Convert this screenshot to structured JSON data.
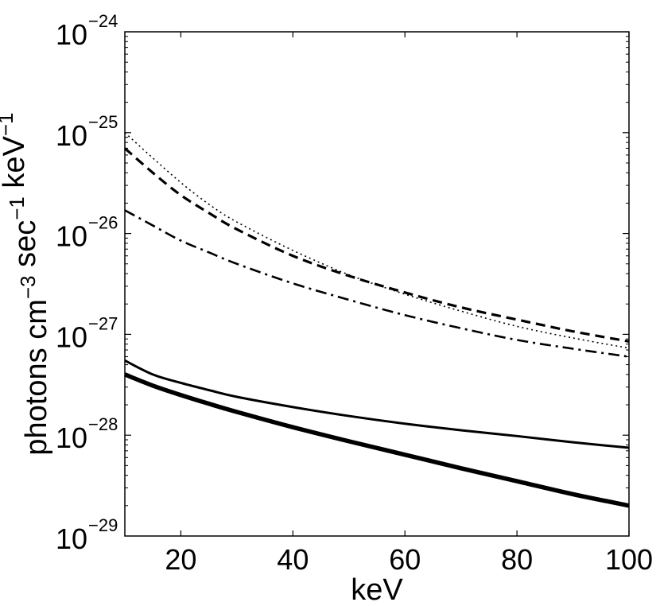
{
  "chart_data": {
    "type": "line",
    "xlabel": "keV",
    "ylabel_parts": [
      {
        "text": "photons cm",
        "sup": "−3"
      },
      {
        "text": " sec",
        "sup": "−1"
      },
      {
        "text": " keV",
        "sup": "−1"
      }
    ],
    "xlim": [
      10,
      100
    ],
    "ylim": [
      1e-29,
      1e-24
    ],
    "y_scale": "log",
    "x_ticks": [
      20,
      40,
      60,
      80,
      100
    ],
    "x_tick_labels": [
      "20",
      "40",
      "60",
      "80",
      "100"
    ],
    "y_tick_labels": [
      {
        "base": "10",
        "exp": "−29"
      },
      {
        "base": "10",
        "exp": "−28"
      },
      {
        "base": "10",
        "exp": "−27"
      },
      {
        "base": "10",
        "exp": "−26"
      },
      {
        "base": "10",
        "exp": "−25"
      },
      {
        "base": "10",
        "exp": "−24"
      }
    ],
    "grid": false,
    "x": [
      10,
      15,
      20,
      25,
      30,
      40,
      50,
      60,
      70,
      80,
      90,
      100
    ],
    "series": [
      {
        "style": "dotted",
        "color": "#000000",
        "values": [
          1e-25,
          5.6e-26,
          3.2e-26,
          1.95e-26,
          1.3e-26,
          6.8e-27,
          3.9e-27,
          2.5e-27,
          1.7e-27,
          1.2e-27,
          9.2e-28,
          7.3e-28
        ]
      },
      {
        "style": "dashed",
        "color": "#000000",
        "values": [
          7e-26,
          4e-26,
          2.4e-26,
          1.6e-26,
          1.1e-26,
          6e-27,
          3.8e-27,
          2.6e-27,
          1.85e-27,
          1.4e-27,
          1.07e-27,
          8.5e-28
        ]
      },
      {
        "style": "dashdot",
        "color": "#000000",
        "values": [
          1.7e-26,
          1.2e-26,
          8.5e-27,
          6.5e-27,
          5e-27,
          3.2e-27,
          2.2e-27,
          1.55e-27,
          1.15e-27,
          8.8e-28,
          7.2e-28,
          6e-28
        ]
      },
      {
        "style": "solid-thin",
        "color": "#000000",
        "values": [
          5.5e-28,
          4e-28,
          3.3e-28,
          2.8e-28,
          2.4e-28,
          1.9e-28,
          1.55e-28,
          1.3e-28,
          1.12e-28,
          9.8e-29,
          8.5e-29,
          7.5e-29
        ]
      },
      {
        "style": "solid-thick",
        "color": "#000000",
        "values": [
          4e-28,
          3.1e-28,
          2.5e-28,
          2.05e-28,
          1.7e-28,
          1.2e-28,
          8.7e-29,
          6.4e-29,
          4.7e-29,
          3.5e-29,
          2.6e-29,
          2e-29
        ]
      }
    ]
  }
}
